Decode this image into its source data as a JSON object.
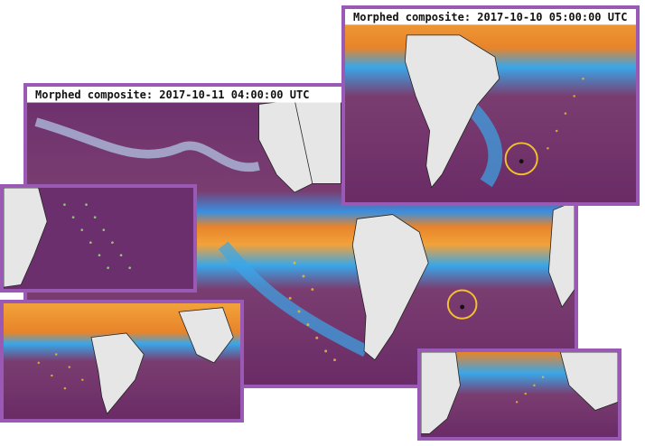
{
  "panels": {
    "main": {
      "title": "Morphed composite: 2017-10-11 04:00:00 UTC"
    },
    "top_right": {
      "title": "Morphed composite: 2017-10-10 05:00:00 UTC"
    }
  },
  "colors": {
    "frame": "#9b59b6",
    "background_dry": "#6a2d6f",
    "moist_high": "#e8842a",
    "moist_mid": "#2aa3e8",
    "land": "#e6e6e6",
    "marker": "#f2c12e"
  }
}
